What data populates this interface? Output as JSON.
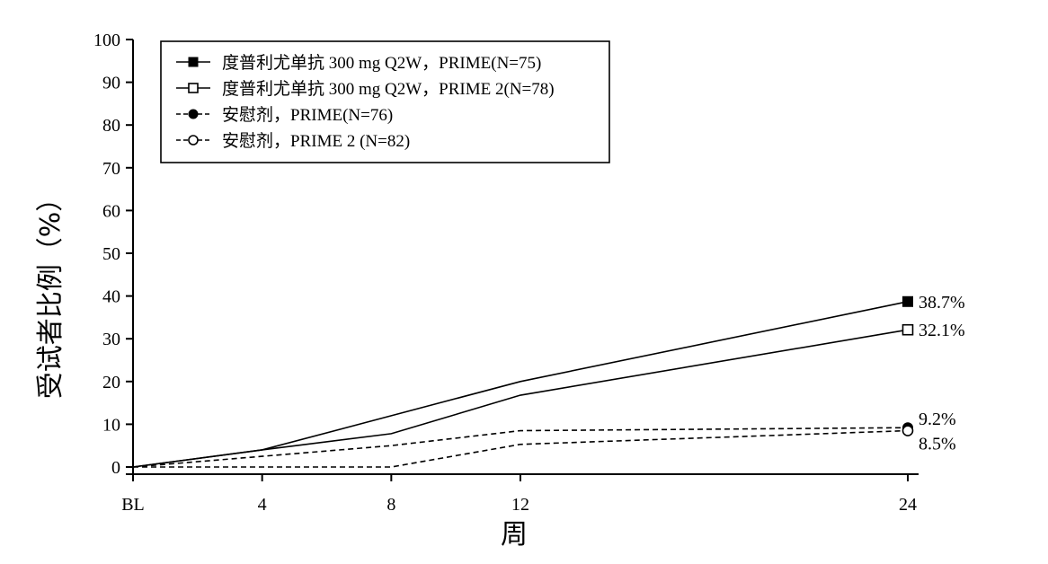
{
  "chart_data": {
    "type": "line",
    "title": "",
    "xlabel": "周",
    "ylabel": "受试者比例（%）",
    "x_tick_labels": [
      "BL",
      "4",
      "8",
      "12",
      "24"
    ],
    "x": [
      0,
      4,
      8,
      12,
      24
    ],
    "ylim": [
      0,
      100
    ],
    "y_ticks": [
      0,
      10,
      20,
      30,
      40,
      50,
      60,
      70,
      80,
      90,
      100
    ],
    "grid": false,
    "legend_position": "top-left",
    "series": [
      {
        "name": "度普利尤单抗 300 mg Q2W，PRIME(N=75)",
        "values": [
          0,
          4,
          12,
          20,
          38.7
        ],
        "line_style": "solid",
        "marker": "filled-square",
        "end_label": "38.7%"
      },
      {
        "name": "度普利尤单抗 300 mg Q2W，PRIME 2(N=78)",
        "values": [
          0,
          4,
          7.8,
          16.8,
          32.1
        ],
        "line_style": "solid",
        "marker": "open-square",
        "end_label": "32.1%"
      },
      {
        "name": "安慰剂，PRIME(N=76)",
        "values": [
          0,
          2.5,
          5,
          8.5,
          9.2
        ],
        "line_style": "dashed",
        "marker": "filled-circle",
        "end_label": "9.2%"
      },
      {
        "name": "安慰剂，PRIME 2 (N=82)",
        "values": [
          0,
          0,
          0,
          5.3,
          8.5
        ],
        "line_style": "dashed",
        "marker": "open-circle",
        "end_label": "8.5%"
      }
    ]
  }
}
